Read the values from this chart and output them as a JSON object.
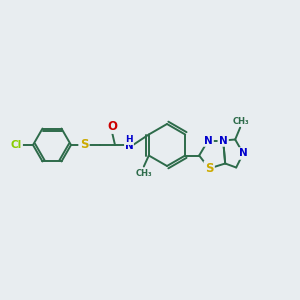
{
  "background_color": "#e8edf0",
  "bond_color": "#2d6b4a",
  "atom_colors": {
    "C": "#2d6b4a",
    "N": "#0000cc",
    "S": "#ccaa00",
    "O": "#cc0000",
    "Cl": "#88cc00",
    "H": "#2d6b4a"
  },
  "font_size": 7.5,
  "figsize": [
    3.0,
    3.0
  ],
  "dpi": 100,
  "lw": 1.4
}
